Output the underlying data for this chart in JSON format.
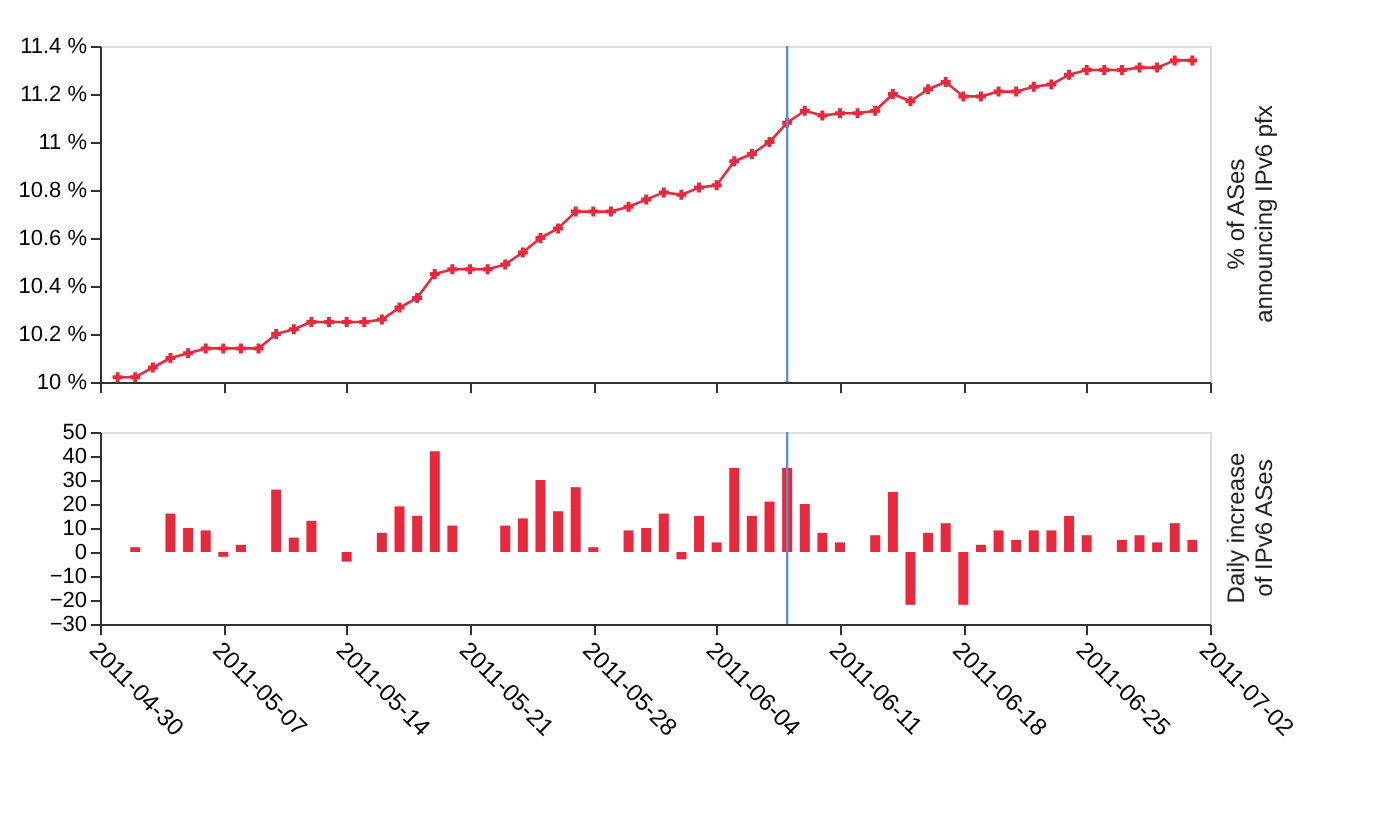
{
  "chart_data": [
    {
      "type": "line",
      "ylabel": "% of ASes\nannouncing IPv6 pfx",
      "tick_labels": "y",
      "marker": "cross",
      "line_style": "solid",
      "grid": false,
      "x": [
        "2011-05-01",
        "2011-05-02",
        "2011-05-03",
        "2011-05-04",
        "2011-05-05",
        "2011-05-06",
        "2011-05-07",
        "2011-05-08",
        "2011-05-09",
        "2011-05-10",
        "2011-05-11",
        "2011-05-12",
        "2011-05-13",
        "2011-05-14",
        "2011-05-15",
        "2011-05-16",
        "2011-05-17",
        "2011-05-18",
        "2011-05-19",
        "2011-05-20",
        "2011-05-21",
        "2011-05-22",
        "2011-05-23",
        "2011-05-24",
        "2011-05-25",
        "2011-05-26",
        "2011-05-27",
        "2011-05-28",
        "2011-05-29",
        "2011-05-30",
        "2011-05-31",
        "2011-06-01",
        "2011-06-02",
        "2011-06-03",
        "2011-06-04",
        "2011-06-05",
        "2011-06-06",
        "2011-06-07",
        "2011-06-08",
        "2011-06-09",
        "2011-06-10",
        "2011-06-11",
        "2011-06-12",
        "2011-06-13",
        "2011-06-14",
        "2011-06-15",
        "2011-06-16",
        "2011-06-17",
        "2011-06-18",
        "2011-06-19",
        "2011-06-20",
        "2011-06-21",
        "2011-06-22",
        "2011-06-23",
        "2011-06-24",
        "2011-06-25",
        "2011-06-26",
        "2011-06-27",
        "2011-06-28",
        "2011-06-29",
        "2011-06-30",
        "2011-07-01"
      ],
      "series": [
        {
          "color": "#e8283c",
          "values": [
            10.02,
            10.02,
            10.06,
            10.1,
            10.12,
            10.14,
            10.14,
            10.14,
            10.14,
            10.2,
            10.22,
            10.25,
            10.25,
            10.25,
            10.25,
            10.26,
            10.31,
            10.35,
            10.45,
            10.47,
            10.47,
            10.47,
            10.49,
            10.54,
            10.6,
            10.64,
            10.71,
            10.71,
            10.71,
            10.73,
            10.76,
            10.79,
            10.78,
            10.81,
            10.82,
            10.92,
            10.95,
            11.0,
            11.08,
            11.13,
            11.11,
            11.12,
            11.12,
            11.13,
            11.2,
            11.17,
            11.22,
            11.25,
            11.19,
            11.19,
            11.21,
            11.21,
            11.23,
            11.24,
            11.28,
            11.3,
            11.3,
            11.3,
            11.31,
            11.31,
            11.34,
            11.34
          ]
        }
      ],
      "xlim": [
        "2011-04-30",
        "2011-07-02"
      ],
      "xticks": [
        "2011-04-30",
        "2011-05-07",
        "2011-05-14",
        "2011-05-21",
        "2011-05-28",
        "2011-06-04",
        "2011-06-11",
        "2011-06-18",
        "2011-06-25",
        "2011-07-02"
      ],
      "ylim": [
        10,
        11.4
      ],
      "yticks": [
        {
          "value": 10,
          "label": "10 %"
        },
        {
          "value": 10.2,
          "label": "10.2 %"
        },
        {
          "value": 10.4,
          "label": "10.4 %"
        },
        {
          "value": 10.6,
          "label": "10.6 %"
        },
        {
          "value": 10.8,
          "label": "10.8 %"
        },
        {
          "value": 11,
          "label": "11 %"
        },
        {
          "value": 11.2,
          "label": "11.2 %"
        },
        {
          "value": 11.4,
          "label": "11.4 %"
        }
      ],
      "ref_lines": [
        {
          "axis": "x",
          "value": "2011-06-08",
          "color": "#5b8fc7"
        }
      ]
    },
    {
      "type": "bar",
      "ylabel": "Daily increase\nof IPv6 ASes",
      "grid": false,
      "x": [
        "2011-05-02",
        "2011-05-03",
        "2011-05-04",
        "2011-05-05",
        "2011-05-06",
        "2011-05-07",
        "2011-05-08",
        "2011-05-09",
        "2011-05-10",
        "2011-05-11",
        "2011-05-12",
        "2011-05-13",
        "2011-05-14",
        "2011-05-15",
        "2011-05-16",
        "2011-05-17",
        "2011-05-18",
        "2011-05-19",
        "2011-05-20",
        "2011-05-21",
        "2011-05-22",
        "2011-05-23",
        "2011-05-24",
        "2011-05-25",
        "2011-05-26",
        "2011-05-27",
        "2011-05-28",
        "2011-05-29",
        "2011-05-30",
        "2011-05-31",
        "2011-06-01",
        "2011-06-02",
        "2011-06-03",
        "2011-06-04",
        "2011-06-05",
        "2011-06-06",
        "2011-06-07",
        "2011-06-08",
        "2011-06-09",
        "2011-06-10",
        "2011-06-11",
        "2011-06-12",
        "2011-06-13",
        "2011-06-14",
        "2011-06-15",
        "2011-06-16",
        "2011-06-17",
        "2011-06-18",
        "2011-06-19",
        "2011-06-20",
        "2011-06-21",
        "2011-06-22",
        "2011-06-23",
        "2011-06-24",
        "2011-06-25",
        "2011-06-26",
        "2011-06-27",
        "2011-06-28",
        "2011-06-29",
        "2011-06-30",
        "2011-07-01"
      ],
      "series": [
        {
          "color": "#e8283c",
          "values": [
            2,
            null,
            16,
            10,
            9,
            -2,
            3,
            null,
            26,
            6,
            13,
            0,
            -4,
            null,
            8,
            19,
            15,
            42,
            11,
            0,
            0,
            11,
            14,
            30,
            17,
            27,
            2,
            null,
            9,
            10,
            16,
            -3,
            15,
            4,
            35,
            15,
            21,
            35,
            20,
            8,
            4,
            0,
            7,
            25,
            -22,
            8,
            12,
            -22,
            3,
            9,
            5,
            9,
            9,
            15,
            7,
            0,
            5,
            7,
            4,
            12,
            5
          ]
        }
      ],
      "xlim": [
        "2011-04-30",
        "2011-07-02"
      ],
      "xticks": [
        "2011-04-30",
        "2011-05-07",
        "2011-05-14",
        "2011-05-21",
        "2011-05-28",
        "2011-06-04",
        "2011-06-11",
        "2011-06-18",
        "2011-06-25",
        "2011-07-02"
      ],
      "ylim": [
        -30,
        50
      ],
      "yticks": [
        -30,
        -20,
        -10,
        0,
        10,
        20,
        30,
        40,
        50
      ],
      "ref_lines": [
        {
          "axis": "x",
          "value": "2011-06-08",
          "color": "#5b8fc7"
        }
      ]
    }
  ]
}
